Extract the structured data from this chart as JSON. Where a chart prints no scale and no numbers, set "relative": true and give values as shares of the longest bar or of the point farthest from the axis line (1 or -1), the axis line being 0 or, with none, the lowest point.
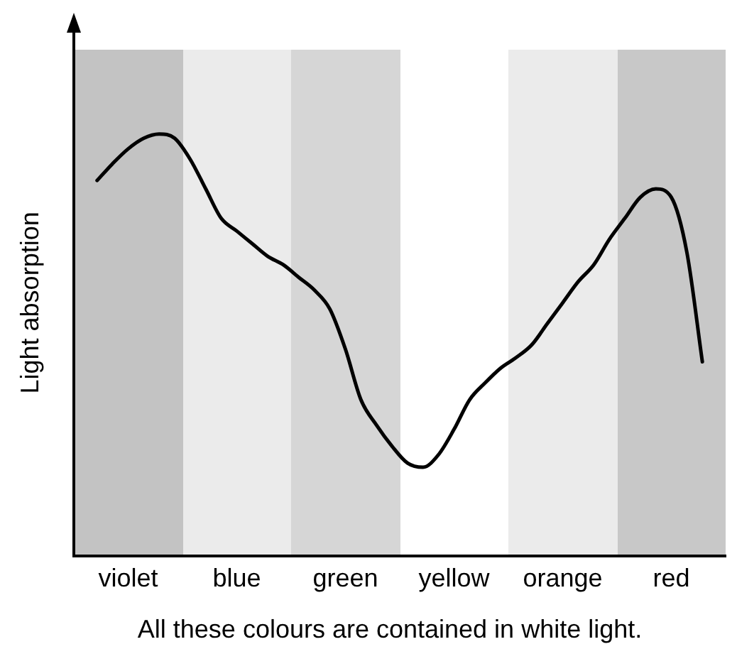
{
  "chart_data": {
    "type": "line",
    "relative": true,
    "ylabel": "Light absorption",
    "annotations": [
      "All these colours are contained in white light."
    ],
    "categories": [
      null,
      null,
      null,
      "violet",
      null,
      null,
      null,
      null,
      null,
      null,
      "blue",
      null,
      null,
      null,
      null,
      null,
      null,
      "green",
      null,
      null,
      null,
      null,
      null,
      null,
      "yellow",
      null,
      null,
      null,
      null,
      null,
      null,
      "orange",
      null,
      null,
      null,
      null,
      null,
      null,
      "red",
      null,
      null,
      null
    ],
    "grid": false,
    "legend": false,
    "marker": "none",
    "line_style": "solid",
    "series": [
      {
        "color": "#000000",
        "values": [
          null,
          0.89,
          0.93,
          0.965,
          0.99,
          1,
          0.99,
          0.94,
          0.87,
          0.8,
          0.77,
          0.74,
          0.71,
          0.69,
          0.66,
          0.63,
          0.585,
          0.49,
          0.37,
          0.31,
          0.26,
          0.22,
          0.21,
          0.24,
          0.3,
          0.37,
          0.41,
          0.445,
          0.47,
          0.5,
          0.55,
          0.6,
          0.65,
          0.69,
          0.75,
          0.8,
          0.85,
          0.87,
          0.85,
          0.72,
          0.46,
          null
        ]
      }
    ]
  }
}
